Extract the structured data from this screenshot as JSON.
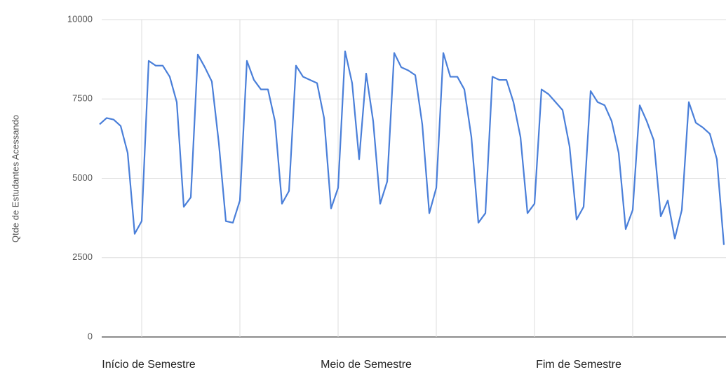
{
  "chart_data": {
    "type": "line",
    "y_axis_label": "Qtde de Estudantes Acessando",
    "x": [
      0,
      1,
      2,
      3,
      4,
      5,
      6,
      7,
      8,
      9,
      10,
      11,
      12,
      13,
      14,
      15,
      16,
      17,
      18,
      19,
      20,
      21,
      22,
      23,
      24,
      25,
      26,
      27,
      28,
      29,
      30,
      31,
      32,
      33,
      34,
      35,
      36,
      37,
      38,
      39,
      40,
      41,
      42,
      43,
      44,
      45,
      46,
      47,
      48,
      49,
      50,
      51,
      52,
      53,
      54,
      55,
      56,
      57,
      58,
      59,
      60,
      61,
      62,
      63,
      64,
      65,
      66,
      67,
      68,
      69,
      70,
      71,
      72,
      73,
      74,
      75,
      76,
      77,
      78,
      79,
      80,
      81,
      82,
      83,
      84,
      85,
      86,
      87,
      88,
      89
    ],
    "series": [
      {
        "color": "#4a7fd9",
        "values": [
          6700,
          6900,
          6850,
          6650,
          5800,
          3250,
          3650,
          8700,
          8550,
          8550,
          8200,
          7400,
          4100,
          4400,
          8900,
          8500,
          8050,
          6100,
          3650,
          3600,
          4300,
          8700,
          8100,
          7800,
          7800,
          6800,
          4200,
          4600,
          8550,
          8200,
          8100,
          8000,
          6900,
          4050,
          4700,
          9000,
          8000,
          5600,
          8300,
          6800,
          4200,
          4900,
          8950,
          8500,
          8400,
          8250,
          6700,
          3900,
          4700,
          8950,
          8200,
          8200,
          7800,
          6300,
          3600,
          3900,
          8200,
          8100,
          8100,
          7400,
          6300,
          3900,
          4200,
          7800,
          7650,
          7400,
          7150,
          6000,
          3700,
          4100,
          7750,
          7400,
          7300,
          6800,
          5800,
          3400,
          4000,
          7300,
          6800,
          6200,
          3800,
          4300,
          3100,
          4000,
          7400,
          6750,
          6600,
          6400,
          5600,
          2900
        ]
      }
    ],
    "xlim": [
      0,
      89.3
    ],
    "xticks": [
      6,
      20,
      34,
      48,
      62,
      76
    ],
    "x_annotations": [
      {
        "x": 7,
        "label": "Início de Semestre"
      },
      {
        "x": 38,
        "label": "Meio de Semestre"
      },
      {
        "x": 68.3,
        "label": "Fim de Semestre"
      }
    ],
    "ylim": [
      0,
      10000
    ],
    "yticks": [
      0,
      2500,
      5000,
      7500,
      10000
    ],
    "grid": true
  }
}
